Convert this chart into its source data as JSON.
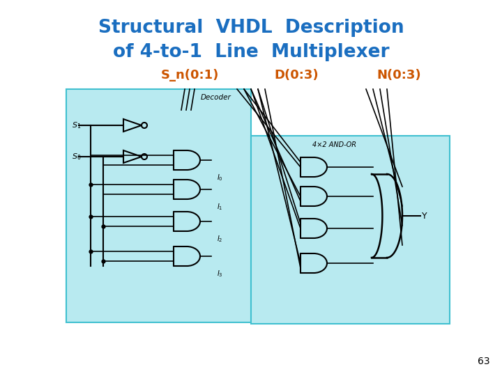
{
  "title_line1": "Structural  VHDL  Description",
  "title_line2": "of 4-to-1  Line  Multiplexer",
  "title_color": "#1a6ec0",
  "title_fontsize": 19,
  "label_sn": "S_n(0:1)",
  "label_d": "D(0:3)",
  "label_n": "N(0:3)",
  "label_color": "#cc5500",
  "label_fontsize": 13,
  "page_number": "63",
  "page_color": "#000000",
  "bg_color": "#ffffff",
  "cyan_color": "#b8eaf0",
  "cyan_edge": "#40c0d0"
}
